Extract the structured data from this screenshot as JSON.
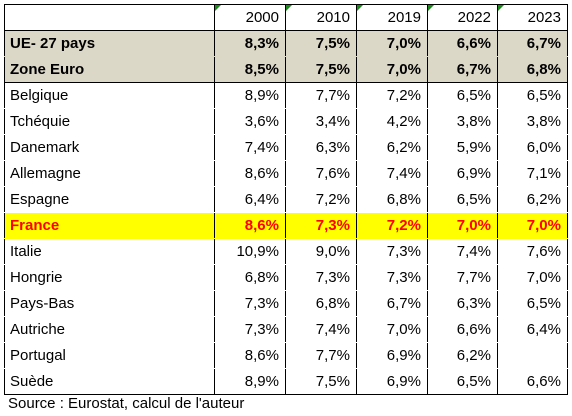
{
  "table": {
    "header": [
      "",
      "2000",
      "2010",
      "2019",
      "2022",
      "2023"
    ],
    "aggregates": [
      {
        "name": "UE- 27 pays",
        "values": [
          "8,3%",
          "7,5%",
          "7,0%",
          "6,6%",
          "6,7%"
        ]
      },
      {
        "name": "Zone Euro",
        "values": [
          "8,5%",
          "7,5%",
          "7,0%",
          "6,7%",
          "6,8%"
        ]
      }
    ],
    "rows": [
      {
        "name": "Belgique",
        "values": [
          "8,9%",
          "7,7%",
          "7,2%",
          "6,5%",
          "6,5%"
        ]
      },
      {
        "name": "Tchéquie",
        "values": [
          "3,6%",
          "3,4%",
          "4,2%",
          "3,8%",
          "3,8%"
        ]
      },
      {
        "name": "Danemark",
        "values": [
          "7,4%",
          "6,3%",
          "6,2%",
          "5,9%",
          "6,0%"
        ]
      },
      {
        "name": "Allemagne",
        "values": [
          "8,6%",
          "7,6%",
          "7,4%",
          "6,9%",
          "7,1%"
        ]
      },
      {
        "name": "Espagne",
        "values": [
          "6,4%",
          "7,2%",
          "6,8%",
          "6,5%",
          "6,2%"
        ]
      },
      {
        "name": "France",
        "values": [
          "8,6%",
          "7,3%",
          "7,2%",
          "7,0%",
          "7,0%"
        ]
      },
      {
        "name": "Italie",
        "values": [
          "10,9%",
          "9,0%",
          "7,3%",
          "7,4%",
          "7,6%"
        ]
      },
      {
        "name": "Hongrie",
        "values": [
          "6,8%",
          "7,3%",
          "7,3%",
          "7,7%",
          "7,0%"
        ]
      },
      {
        "name": "Pays-Bas",
        "values": [
          "7,3%",
          "6,8%",
          "6,7%",
          "6,3%",
          "6,5%"
        ]
      },
      {
        "name": "Autriche",
        "values": [
          "7,3%",
          "7,4%",
          "7,0%",
          "6,6%",
          "6,4%"
        ]
      },
      {
        "name": "Portugal",
        "values": [
          "8,6%",
          "7,7%",
          "6,9%",
          "6,2%",
          ""
        ]
      },
      {
        "name": "Suède",
        "values": [
          "8,9%",
          "7,5%",
          "6,9%",
          "6,5%",
          "6,6%"
        ]
      }
    ],
    "highlight_row": "France",
    "colors": {
      "aggregate_bg": "#dcd8c8",
      "highlight_bg": "#ffff00",
      "highlight_text": "#ff0000"
    }
  },
  "source": "Source : Eurostat, calcul de l'auteur"
}
